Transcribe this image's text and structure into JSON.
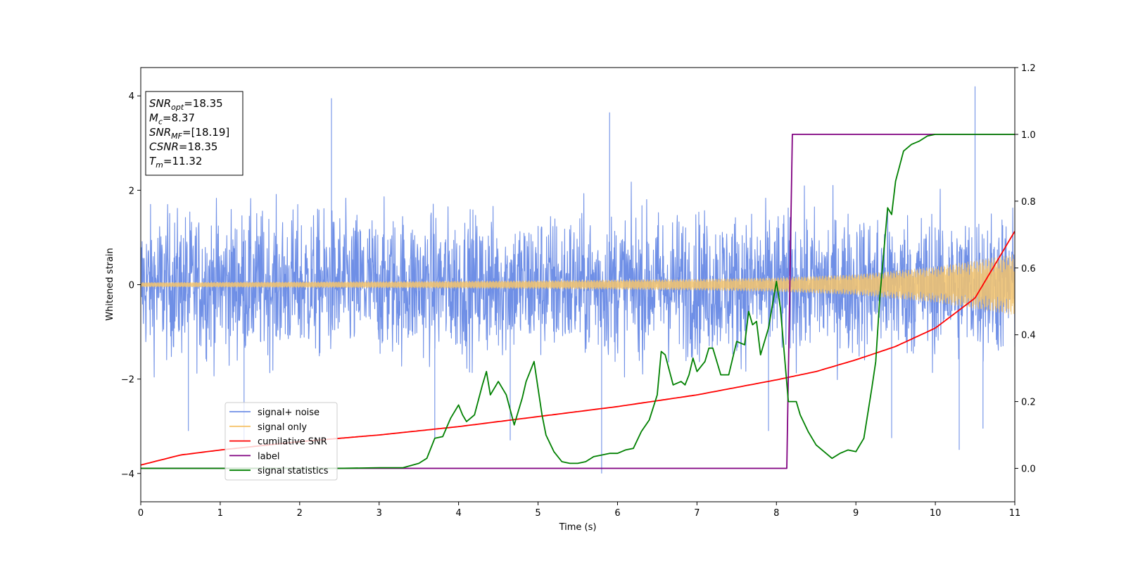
{
  "chart_data": {
    "type": "line",
    "xlabel": "Time (s)",
    "ylabel": "Whitened strain",
    "xlim": [
      0,
      11
    ],
    "ylim_left": [
      -4.6,
      4.6
    ],
    "ylim_right": [
      -0.1,
      1.2
    ],
    "x_ticks": [
      "0",
      "1",
      "2",
      "3",
      "4",
      "5",
      "6",
      "7",
      "8",
      "9",
      "10",
      "11"
    ],
    "y_ticks_left": [
      "−4",
      "−2",
      "0",
      "2",
      "4"
    ],
    "y_ticks_right": [
      "0.0",
      "0.2",
      "0.4",
      "0.6",
      "0.8",
      "1.0",
      "1.2"
    ],
    "grid": false,
    "legend_placement": "lower-left",
    "info_box": [
      {
        "base": "SNR",
        "sub": "opt",
        "rest": "=18.35"
      },
      {
        "base": "M",
        "sub": "c",
        "rest": "=8.37"
      },
      {
        "base": "SNR",
        "sub": "MF",
        "rest": "=[18.19]"
      },
      {
        "base": "CSNR",
        "sub": "",
        "rest": "=18.35"
      },
      {
        "base": "T",
        "sub": "m",
        "rest": "=11.32"
      }
    ],
    "series": [
      {
        "name": "signal+ noise",
        "axis": "left",
        "color": "#6f8fe6",
        "envelope": {
          "x": [
            0,
            11
          ],
          "min": [
            -2.6,
            -2.6
          ],
          "max": [
            2.6,
            2.6
          ]
        },
        "spikes": [
          {
            "x": 2.4,
            "y": 3.95
          },
          {
            "x": 5.9,
            "y": 3.65
          },
          {
            "x": 10.5,
            "y": 4.2
          },
          {
            "x": 5.8,
            "y": -4.0
          },
          {
            "x": 0.6,
            "y": -3.1
          },
          {
            "x": 10.3,
            "y": -3.5
          },
          {
            "x": 10.6,
            "y": -3.05
          },
          {
            "x": 3.7,
            "y": -3.25
          },
          {
            "x": 1.3,
            "y": -3.3
          },
          {
            "x": 9.45,
            "y": -3.25
          },
          {
            "x": 4.65,
            "y": -3.3
          },
          {
            "x": 7.9,
            "y": -3.1
          }
        ]
      },
      {
        "name": "signal only",
        "axis": "left",
        "color": "#f5c46c",
        "amplitude": {
          "x": [
            0,
            3,
            5,
            7,
            8,
            9,
            10,
            11
          ],
          "y": [
            0.05,
            0.07,
            0.09,
            0.12,
            0.15,
            0.22,
            0.38,
            0.65
          ]
        }
      },
      {
        "name": "cumilative SNR",
        "axis": "right",
        "color": "#ff0000",
        "x": [
          0,
          0.5,
          1,
          2,
          3,
          4,
          5,
          6,
          7,
          8,
          8.5,
          9,
          9.5,
          10,
          10.5,
          11
        ],
        "y": [
          0.01,
          0.04,
          0.055,
          0.08,
          0.1,
          0.125,
          0.155,
          0.185,
          0.22,
          0.265,
          0.29,
          0.325,
          0.365,
          0.42,
          0.51,
          0.71
        ]
      },
      {
        "name": "label",
        "axis": "right",
        "color": "#800080",
        "x": [
          0,
          8.13,
          8.2,
          11
        ],
        "y": [
          0,
          0,
          1,
          1
        ]
      },
      {
        "name": "signal statistics",
        "axis": "right",
        "color": "#008000",
        "x": [
          0,
          0.5,
          1,
          1.5,
          2,
          2.5,
          3,
          3.3,
          3.5,
          3.6,
          3.7,
          3.8,
          3.9,
          4.0,
          4.05,
          4.1,
          4.2,
          4.3,
          4.35,
          4.4,
          4.5,
          4.6,
          4.7,
          4.8,
          4.85,
          4.95,
          5.0,
          5.05,
          5.1,
          5.2,
          5.3,
          5.4,
          5.5,
          5.6,
          5.7,
          5.8,
          5.9,
          6.0,
          6.1,
          6.2,
          6.3,
          6.4,
          6.5,
          6.55,
          6.6,
          6.7,
          6.8,
          6.85,
          6.9,
          6.95,
          7.0,
          7.1,
          7.15,
          7.2,
          7.3,
          7.4,
          7.5,
          7.6,
          7.65,
          7.7,
          7.75,
          7.8,
          7.9,
          8.0,
          8.05,
          8.1,
          8.15,
          8.25,
          8.3,
          8.4,
          8.5,
          8.6,
          8.7,
          8.8,
          8.9,
          9.0,
          9.1,
          9.2,
          9.25,
          9.3,
          9.4,
          9.45,
          9.5,
          9.6,
          9.7,
          9.8,
          9.9,
          10.0,
          10.2,
          10.5,
          11.0
        ],
        "y": [
          0,
          0,
          0,
          0,
          0,
          0,
          0.002,
          0.002,
          0.015,
          0.03,
          0.09,
          0.095,
          0.15,
          0.19,
          0.16,
          0.14,
          0.16,
          0.25,
          0.29,
          0.22,
          0.26,
          0.22,
          0.13,
          0.21,
          0.26,
          0.32,
          0.24,
          0.16,
          0.1,
          0.05,
          0.02,
          0.015,
          0.015,
          0.02,
          0.035,
          0.04,
          0.045,
          0.045,
          0.055,
          0.06,
          0.11,
          0.145,
          0.22,
          0.35,
          0.34,
          0.25,
          0.26,
          0.25,
          0.28,
          0.33,
          0.29,
          0.32,
          0.36,
          0.36,
          0.28,
          0.28,
          0.38,
          0.37,
          0.47,
          0.43,
          0.44,
          0.34,
          0.42,
          0.56,
          0.48,
          0.34,
          0.2,
          0.2,
          0.16,
          0.11,
          0.07,
          0.05,
          0.03,
          0.045,
          0.055,
          0.05,
          0.09,
          0.24,
          0.32,
          0.51,
          0.78,
          0.76,
          0.86,
          0.95,
          0.97,
          0.98,
          0.995,
          1.0,
          1.0,
          1.0,
          1.0
        ]
      }
    ]
  }
}
